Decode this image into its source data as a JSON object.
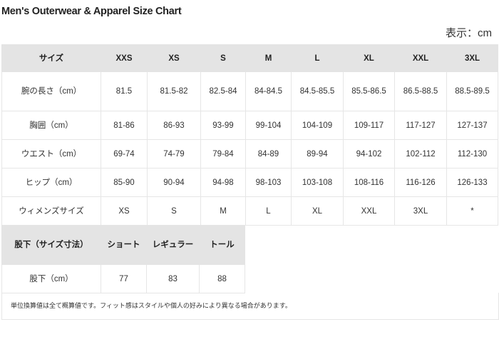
{
  "title": "Men's Outerwear & Apparel Size Chart",
  "unit_label": "表示：cm",
  "main_table": {
    "header": [
      "サイズ",
      "XXS",
      "XS",
      "S",
      "M",
      "L",
      "XL",
      "XXL",
      "3XL"
    ],
    "rows": [
      [
        "腕の長さ（cm）",
        "81.5",
        "81.5-82",
        "82.5-84",
        "84-84.5",
        "84.5-85.5",
        "85.5-86.5",
        "86.5-88.5",
        "88.5-89.5"
      ],
      [
        "胸囲（cm）",
        "81-86",
        "86-93",
        "93-99",
        "99-104",
        "104-109",
        "109-117",
        "117-127",
        "127-137"
      ],
      [
        "ウエスト（cm）",
        "69-74",
        "74-79",
        "79-84",
        "84-89",
        "89-94",
        "94-102",
        "102-112",
        "112-130"
      ],
      [
        "ヒップ（cm）",
        "85-90",
        "90-94",
        "94-98",
        "98-103",
        "103-108",
        "108-116",
        "116-126",
        "126-133"
      ],
      [
        "ウィメンズサイズ",
        "XS",
        "S",
        "M",
        "L",
        "XL",
        "XXL",
        "3XL",
        "*"
      ]
    ]
  },
  "inseam_table": {
    "header": [
      "股下（サイズ寸法）",
      "ショート",
      "レギュラー",
      "トール"
    ],
    "rows": [
      [
        "股下（cm）",
        "77",
        "83",
        "88"
      ]
    ]
  },
  "note": "単位換算値は全て概算値です。フィット感はスタイルや個人の好みにより異なる場合があります。"
}
